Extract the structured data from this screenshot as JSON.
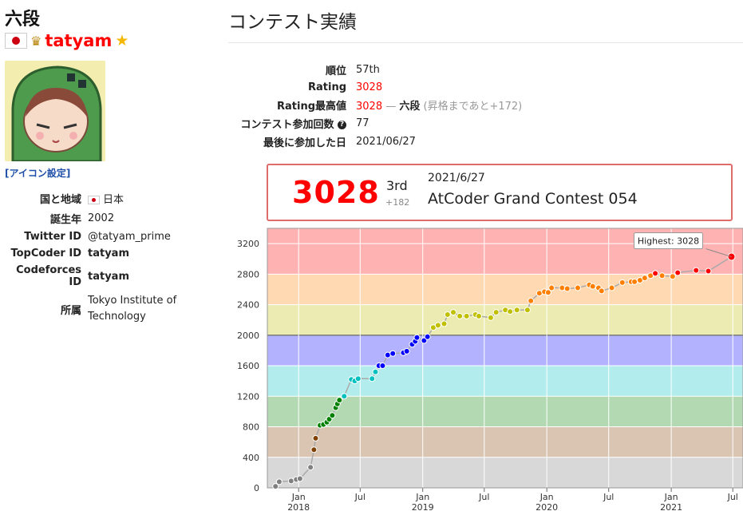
{
  "profile": {
    "rank_title": "六段",
    "username": "tatyam",
    "icon_settings_link": "[アイコン設定]",
    "info": [
      {
        "key": "国と地域",
        "value": "日本",
        "kind": "flag"
      },
      {
        "key": "誕生年",
        "value": "2002",
        "kind": "text"
      },
      {
        "key": "Twitter ID",
        "value": "@tatyam_prime",
        "kind": "link"
      },
      {
        "key": "TopCoder ID",
        "value": "tatyam",
        "kind": "red"
      },
      {
        "key": "Codeforces ID",
        "value": "tatyam",
        "kind": "red"
      },
      {
        "key": "所属",
        "value": "Tokyo Institute of Technology",
        "kind": "text"
      }
    ]
  },
  "contest_history": {
    "title": "コンテスト実績",
    "rank_label": "順位",
    "rank_value": "57th",
    "rating_label": "Rating",
    "rating_value": "3028",
    "highest_label": "Rating最高値",
    "highest_value": "3028",
    "highest_sep": " — ",
    "highest_grade": "六段",
    "highest_note": "(昇格まであと+172)",
    "count_label": "コンテスト参加回数",
    "count_value": "77",
    "last_label": "最後に参加した日",
    "last_value": "2021/06/27"
  },
  "latest_contest": {
    "rating": "3028",
    "place": "3rd",
    "delta": "+182",
    "date": "2021/6/27",
    "name": "AtCoder Grand Contest 054"
  },
  "colors": {
    "gray": "#808080",
    "brown": "#804000",
    "green": "#008000",
    "cyan": "#00C0C0",
    "blue": "#0000FF",
    "yellow": "#C0C000",
    "orange": "#FF8000",
    "red": "#FF0000",
    "band_gray": "#D8D8D8",
    "band_brown": "#D9C5B2",
    "band_green": "#B2D9B2",
    "band_cyan": "#B2ECEC",
    "band_blue": "#B2B2FF",
    "band_yellow": "#ECECB2",
    "band_orange": "#FFD9B2",
    "band_red": "#FFB2B2"
  },
  "chart_data": {
    "type": "line",
    "ylim": [
      0,
      3400
    ],
    "yticks": [
      "0",
      "400",
      "800",
      "1200",
      "1600",
      "2000",
      "2400",
      "2800",
      "3200"
    ],
    "xlim": [
      "2017-10-01",
      "2021-07-31"
    ],
    "xticks": [
      {
        "date": "2018-01-01",
        "label": "Jan",
        "sublabel": "2018"
      },
      {
        "date": "2018-07-01",
        "label": "Jul",
        "sublabel": ""
      },
      {
        "date": "2019-01-01",
        "label": "Jan",
        "sublabel": "2019"
      },
      {
        "date": "2019-07-01",
        "label": "Jul",
        "sublabel": ""
      },
      {
        "date": "2020-01-01",
        "label": "Jan",
        "sublabel": "2020"
      },
      {
        "date": "2020-07-01",
        "label": "Jul",
        "sublabel": ""
      },
      {
        "date": "2021-01-01",
        "label": "Jan",
        "sublabel": "2021"
      },
      {
        "date": "2021-07-01",
        "label": "Jul",
        "sublabel": ""
      }
    ],
    "tooltip": "Highest: 3028",
    "series": [
      {
        "points": [
          [
            "2017-10-25",
            20
          ],
          [
            "2017-11-05",
            80
          ],
          [
            "2017-12-10",
            90
          ],
          [
            "2017-12-25",
            110
          ],
          [
            "2018-01-05",
            120
          ],
          [
            "2018-02-05",
            270
          ],
          [
            "2018-02-15",
            500
          ],
          [
            "2018-02-20",
            650
          ],
          [
            "2018-03-05",
            820
          ],
          [
            "2018-03-15",
            830
          ],
          [
            "2018-03-25",
            860
          ],
          [
            "2018-04-01",
            900
          ],
          [
            "2018-04-10",
            950
          ],
          [
            "2018-04-20",
            1050
          ],
          [
            "2018-04-25",
            1100
          ],
          [
            "2018-05-01",
            1150
          ],
          [
            "2018-05-15",
            1200
          ],
          [
            "2018-06-05",
            1420
          ],
          [
            "2018-06-15",
            1400
          ],
          [
            "2018-06-25",
            1430
          ],
          [
            "2018-08-05",
            1430
          ],
          [
            "2018-08-15",
            1520
          ],
          [
            "2018-08-25",
            1600
          ],
          [
            "2018-09-05",
            1600
          ],
          [
            "2018-09-20",
            1740
          ],
          [
            "2018-10-05",
            1760
          ],
          [
            "2018-11-05",
            1770
          ],
          [
            "2018-11-15",
            1790
          ],
          [
            "2018-12-01",
            1880
          ],
          [
            "2018-12-10",
            1920
          ],
          [
            "2018-12-15",
            1970
          ],
          [
            "2019-01-05",
            1930
          ],
          [
            "2019-01-15",
            1980
          ],
          [
            "2019-02-01",
            2100
          ],
          [
            "2019-02-15",
            2130
          ],
          [
            "2019-03-05",
            2150
          ],
          [
            "2019-03-15",
            2270
          ],
          [
            "2019-04-01",
            2300
          ],
          [
            "2019-04-20",
            2250
          ],
          [
            "2019-05-10",
            2250
          ],
          [
            "2019-06-05",
            2270
          ],
          [
            "2019-06-15",
            2250
          ],
          [
            "2019-07-20",
            2230
          ],
          [
            "2019-08-05",
            2300
          ],
          [
            "2019-09-01",
            2330
          ],
          [
            "2019-09-15",
            2310
          ],
          [
            "2019-10-05",
            2330
          ],
          [
            "2019-11-05",
            2330
          ],
          [
            "2019-11-15",
            2450
          ],
          [
            "2019-12-10",
            2550
          ],
          [
            "2019-12-25",
            2570
          ],
          [
            "2020-01-05",
            2560
          ],
          [
            "2020-01-15",
            2620
          ],
          [
            "2020-02-15",
            2620
          ],
          [
            "2020-03-01",
            2610
          ],
          [
            "2020-04-01",
            2620
          ],
          [
            "2020-05-05",
            2660
          ],
          [
            "2020-05-15",
            2640
          ],
          [
            "2020-06-01",
            2620
          ],
          [
            "2020-06-10",
            2580
          ],
          [
            "2020-07-10",
            2620
          ],
          [
            "2020-08-10",
            2690
          ],
          [
            "2020-09-05",
            2700
          ],
          [
            "2020-09-15",
            2700
          ],
          [
            "2020-10-01",
            2720
          ],
          [
            "2020-10-15",
            2750
          ],
          [
            "2020-11-01",
            2780
          ],
          [
            "2020-11-15",
            2810
          ],
          [
            "2020-12-05",
            2780
          ],
          [
            "2021-01-05",
            2770
          ],
          [
            "2021-01-20",
            2820
          ],
          [
            "2021-03-15",
            2850
          ],
          [
            "2021-04-20",
            2840
          ],
          [
            "2021-06-27",
            3028
          ]
        ]
      }
    ]
  }
}
